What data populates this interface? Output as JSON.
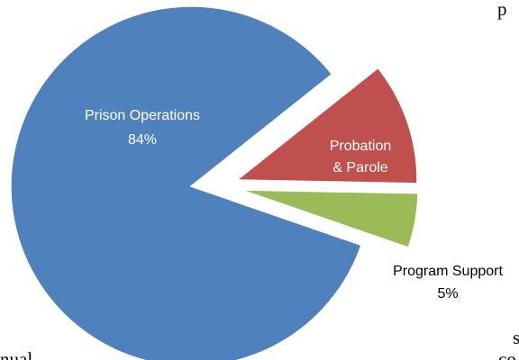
{
  "chart_data": {
    "type": "pie",
    "title": "",
    "exploded": true,
    "slices": [
      {
        "label": "Prison Operations",
        "value": 84,
        "display": "84%",
        "color": "#4f81bd"
      },
      {
        "label": "Probation & Parole",
        "value": 11,
        "display": "11%",
        "color": "#c0504d"
      },
      {
        "label": "Program Support",
        "value": 5,
        "display": "5%",
        "color": "#9bbb59"
      }
    ]
  },
  "background_text": {
    "top_right": "p",
    "bottom_left": "nual",
    "bottom_right_1": "s",
    "bottom_right_2": "co d"
  }
}
